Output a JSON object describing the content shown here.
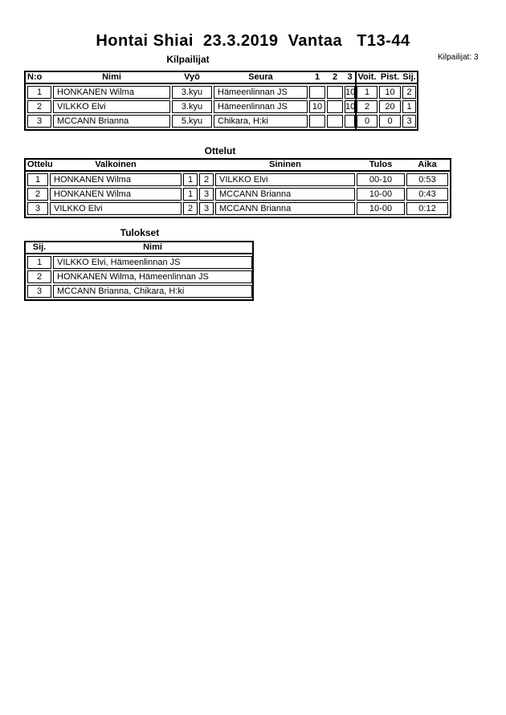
{
  "page": {
    "title": "Hontai Shiai  23.3.2019  Vantaa   T13-44",
    "competitors_count_label": "Kilpailijat: 3"
  },
  "competitors_table": {
    "heading": "Kilpailijat",
    "headers": [
      "N:o",
      "Nimi",
      "Vyö",
      "Seura",
      "1",
      "2",
      "3",
      "Voit.",
      "Pist.",
      "Sij."
    ],
    "rows": [
      {
        "no": "1",
        "name": "HONKANEN Wilma",
        "belt": "3.kyu",
        "club": "Hämeenlinnan JS",
        "r1": "",
        "r2": "",
        "r3": "10",
        "wins": "1",
        "points": "10",
        "place": "2"
      },
      {
        "no": "2",
        "name": "VILKKO Elvi",
        "belt": "3.kyu",
        "club": "Hämeenlinnan JS",
        "r1": "10",
        "r2": "",
        "r3": "10",
        "wins": "2",
        "points": "20",
        "place": "1"
      },
      {
        "no": "3",
        "name": "MCCANN Brianna",
        "belt": "5.kyu",
        "club": "Chikara, H:ki",
        "r1": "",
        "r2": "",
        "r3": "",
        "wins": "0",
        "points": "0",
        "place": "3"
      }
    ]
  },
  "matches_table": {
    "heading": "Ottelut",
    "headers": [
      "Ottelu",
      "Valkoinen",
      "Sininen",
      "Tulos",
      "Aika"
    ],
    "rows": [
      {
        "no": "1",
        "white": "HONKANEN Wilma",
        "white_no": "1",
        "blue_no": "2",
        "blue": "VILKKO Elvi",
        "result": "00-10",
        "time": "0:53"
      },
      {
        "no": "2",
        "white": "HONKANEN Wilma",
        "white_no": "1",
        "blue_no": "3",
        "blue": "MCCANN Brianna",
        "result": "10-00",
        "time": "0:43"
      },
      {
        "no": "3",
        "white": "VILKKO Elvi",
        "white_no": "2",
        "blue_no": "3",
        "blue": "MCCANN Brianna",
        "result": "10-00",
        "time": "0:12"
      }
    ]
  },
  "results_table": {
    "heading": "Tulokset",
    "headers": [
      "Sij.",
      "Nimi"
    ],
    "rows": [
      {
        "place": "1",
        "name": "VILKKO Elvi, Hämeenlinnan JS"
      },
      {
        "place": "2",
        "name": "HONKANEN Wilma, Hämeenlinnan JS"
      },
      {
        "place": "3",
        "name": "MCCANN Brianna, Chikara, H:ki"
      }
    ]
  }
}
